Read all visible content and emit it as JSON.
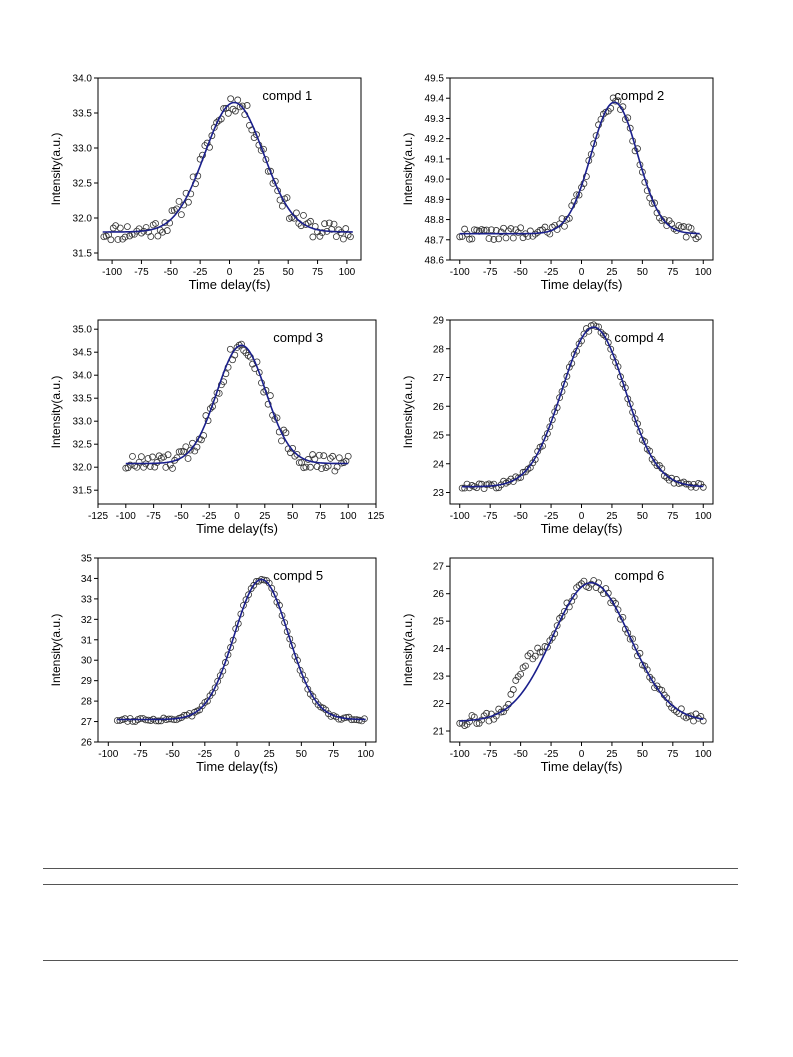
{
  "chart_data": [
    {
      "type": "scatter",
      "title": "compd 1",
      "xlabel": "Time delay(fs)",
      "ylabel": "Intensity(a.u.)",
      "xlim": [
        -112,
        112
      ],
      "ylim": [
        31.4,
        34.0
      ],
      "xticks": [
        -100,
        -75,
        -50,
        -25,
        0,
        25,
        50,
        75,
        100
      ],
      "yticks": [
        31.5,
        32.0,
        32.5,
        33.0,
        33.5,
        34.0
      ],
      "ytick_labels": [
        "31.5",
        "32.0",
        "32.5",
        "33.0",
        "33.5",
        "34.0"
      ],
      "fit": {
        "baseline": 31.8,
        "amplitude": 1.85,
        "center": 4,
        "width": 25,
        "x_range": [
          -108,
          105
        ]
      },
      "points_range": [
        -107,
        103
      ],
      "noise": 0.13,
      "seed": 11
    },
    {
      "type": "scatter",
      "title": "compd 2",
      "xlabel": "Time delay(fs)",
      "ylabel": "Intensity(a.u.)",
      "xlim": [
        -108,
        108
      ],
      "ylim": [
        48.6,
        49.5
      ],
      "xticks": [
        -100,
        -75,
        -50,
        -25,
        0,
        25,
        50,
        75,
        100
      ],
      "yticks": [
        48.6,
        48.7,
        48.8,
        48.9,
        49.0,
        49.1,
        49.2,
        49.3,
        49.4,
        49.5
      ],
      "ytick_labels": [
        "48.6",
        "48.7",
        "48.8",
        "48.9",
        "49.0",
        "49.1",
        "49.2",
        "49.3",
        "49.4",
        "49.5"
      ],
      "fit": {
        "baseline": 48.73,
        "amplitude": 0.65,
        "center": 27,
        "width": 19,
        "x_range": [
          -100,
          97
        ]
      },
      "points_range": [
        -100,
        97
      ],
      "noise": 0.03,
      "seed": 22
    },
    {
      "type": "scatter",
      "title": "compd 3",
      "xlabel": "Time delay(fs)",
      "ylabel": "Intensity(a.u.)",
      "xlim": [
        -125,
        125
      ],
      "ylim": [
        31.2,
        35.2
      ],
      "xticks": [
        -125,
        -100,
        -75,
        -50,
        -25,
        0,
        25,
        50,
        75,
        100,
        125
      ],
      "yticks": [
        31.5,
        32.0,
        32.5,
        33.0,
        33.5,
        34.0,
        34.5,
        35.0
      ],
      "ytick_labels": [
        "31.5",
        "32.0",
        "32.5",
        "33.0",
        "33.5",
        "34.0",
        "34.5",
        "35.0"
      ],
      "fit": {
        "baseline": 32.08,
        "amplitude": 2.57,
        "center": 4,
        "width": 22,
        "x_range": [
          -100,
          100
        ]
      },
      "points_range": [
        -100,
        100
      ],
      "noise": 0.2,
      "seed": 33
    },
    {
      "type": "scatter",
      "title": "compd 4",
      "xlabel": "Time delay(fs)",
      "ylabel": "Intensity(a.u.)",
      "xlim": [
        -108,
        108
      ],
      "ylim": [
        22.6,
        29.0
      ],
      "xticks": [
        -100,
        -75,
        -50,
        -25,
        0,
        25,
        50,
        75,
        100
      ],
      "yticks": [
        23,
        24,
        25,
        26,
        27,
        28,
        29
      ],
      "ytick_labels": [
        "23",
        "24",
        "25",
        "26",
        "27",
        "28",
        "29"
      ],
      "fit": {
        "baseline": 23.2,
        "amplitude": 5.55,
        "center": 10,
        "width": 26,
        "x_range": [
          -98,
          100
        ]
      },
      "points_range": [
        -98,
        100
      ],
      "noise": 0.1,
      "seed": 44
    },
    {
      "type": "scatter",
      "title": "compd 5",
      "xlabel": "Time delay(fs)",
      "ylabel": "Intensity(a.u.)",
      "xlim": [
        -108,
        108
      ],
      "ylim": [
        26,
        35
      ],
      "xticks": [
        -100,
        -75,
        -50,
        -25,
        0,
        25,
        50,
        75,
        100
      ],
      "yticks": [
        26,
        27,
        28,
        29,
        30,
        31,
        32,
        33,
        34,
        35
      ],
      "ytick_labels": [
        "26",
        "27",
        "28",
        "29",
        "30",
        "31",
        "32",
        "33",
        "34",
        "35"
      ],
      "fit": {
        "baseline": 27.1,
        "amplitude": 6.85,
        "center": 19,
        "width": 21,
        "x_range": [
          -93,
          100
        ]
      },
      "points_range": [
        -93,
        100
      ],
      "noise": 0.1,
      "seed": 55
    },
    {
      "type": "scatter",
      "title": "compd 6",
      "xlabel": "Time delay(fs)",
      "ylabel": "Intensity(a.u.)",
      "xlim": [
        -108,
        108
      ],
      "ylim": [
        20.6,
        27.3
      ],
      "xticks": [
        -100,
        -75,
        -50,
        -25,
        0,
        25,
        50,
        75,
        100
      ],
      "yticks": [
        21,
        22,
        23,
        24,
        25,
        26,
        27
      ],
      "ytick_labels": [
        "21",
        "22",
        "23",
        "24",
        "25",
        "26",
        "27"
      ],
      "fit": {
        "baseline": 21.35,
        "amplitude": 5.05,
        "center": 8,
        "width": 32,
        "x_range": [
          -100,
          100
        ]
      },
      "points_range": [
        -100,
        100
      ],
      "noise": 0.18,
      "seed": 66,
      "bump": {
        "center": -45,
        "amplitude": 0.9,
        "width": 9
      }
    }
  ],
  "style": {
    "fit_color": "#1a1f8c",
    "marker_stroke": "#333333",
    "axis_color": "#000000"
  }
}
